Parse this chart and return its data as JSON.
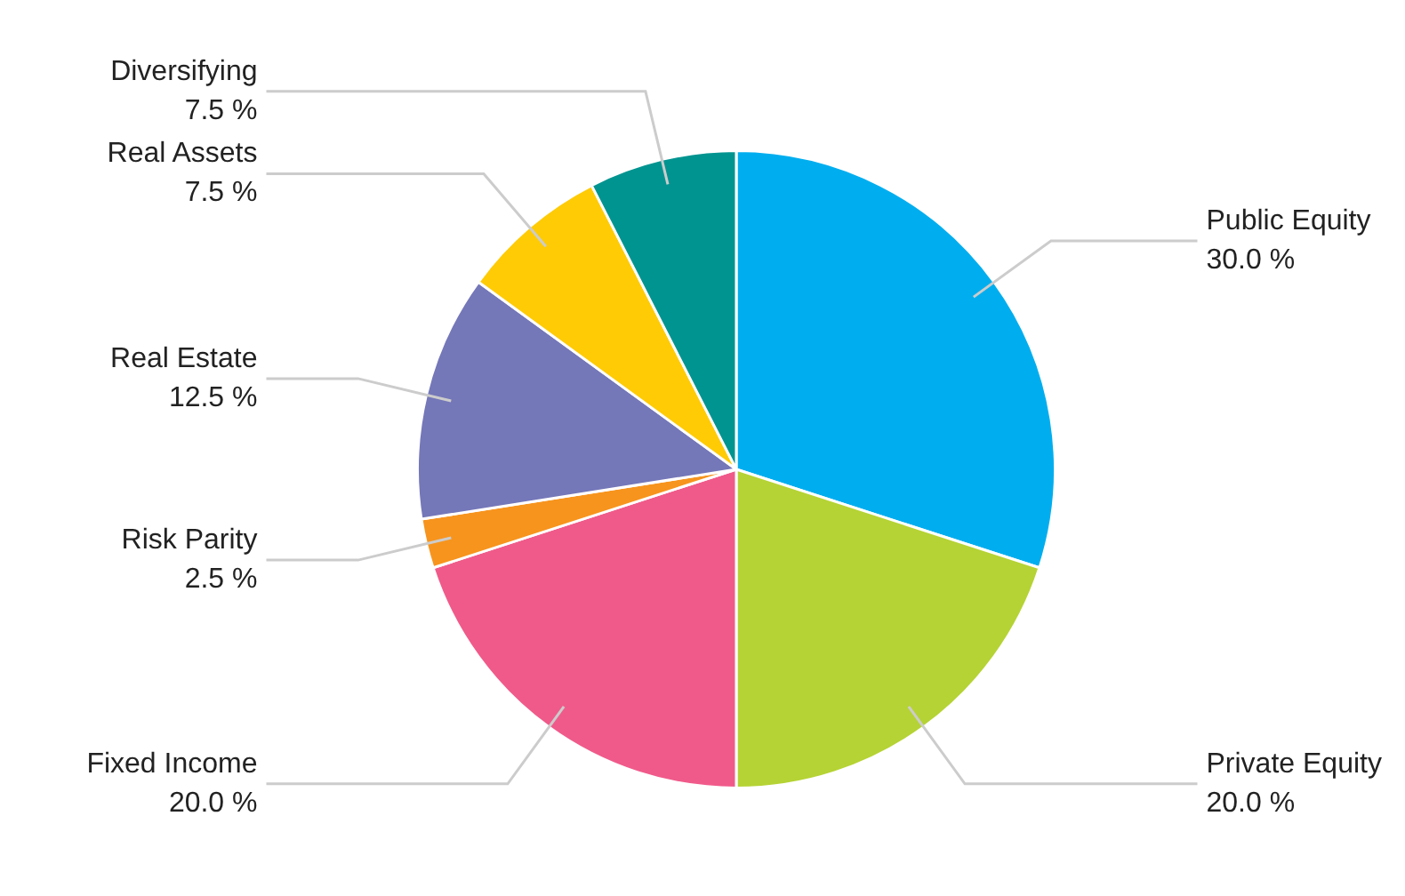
{
  "chart_data": {
    "type": "pie",
    "categories": [
      "Public Equity",
      "Private Equity",
      "Fixed Income",
      "Risk Parity",
      "Real Estate",
      "Real Assets",
      "Diversifying"
    ],
    "values": [
      30.0,
      20.0,
      20.0,
      2.5,
      12.5,
      7.5,
      7.5
    ],
    "value_labels": [
      "30.0 %",
      "20.0 %",
      "20.0 %",
      "2.5 %",
      "12.5 %",
      "7.5 %",
      "7.5 %"
    ],
    "colors": [
      "#00aeef",
      "#b5d334",
      "#f05a8a",
      "#f7941d",
      "#7477b8",
      "#ffcb05",
      "#009490"
    ],
    "legend": false
  }
}
